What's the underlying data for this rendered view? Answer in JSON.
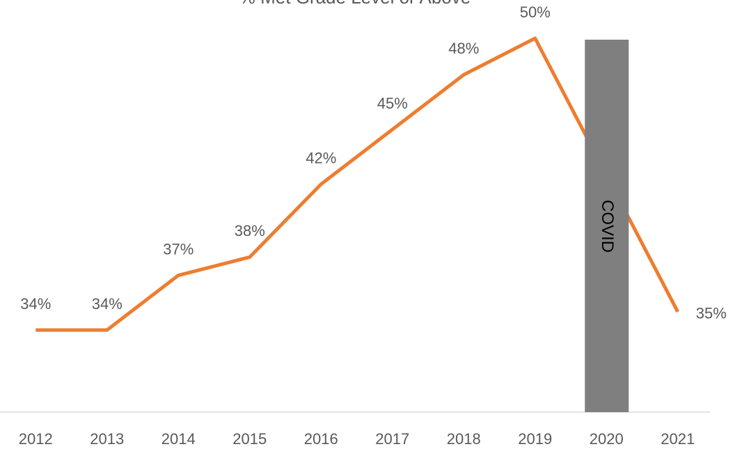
{
  "chart_data": {
    "type": "line",
    "title": "% Met Grade Level or Above",
    "x": [
      2012,
      2013,
      2014,
      2015,
      2016,
      2017,
      2018,
      2019,
      2021
    ],
    "values": [
      34,
      34,
      37,
      38,
      42,
      45,
      48,
      50,
      35
    ],
    "value_labels": [
      "34%",
      "34%",
      "37%",
      "38%",
      "42%",
      "45%",
      "48%",
      "50%",
      "35%"
    ],
    "color": "#ed7d31",
    "xlim": [
      2011.5,
      2021.9
    ],
    "xticks": [
      2012,
      2013,
      2014,
      2015,
      2016,
      2017,
      2018,
      2019,
      2020,
      2021
    ],
    "ylim": [
      29.5,
      52.1
    ],
    "annotations": [
      {
        "text": "COVID",
        "x": 2020,
        "color": "#7f7f7f"
      }
    ]
  }
}
